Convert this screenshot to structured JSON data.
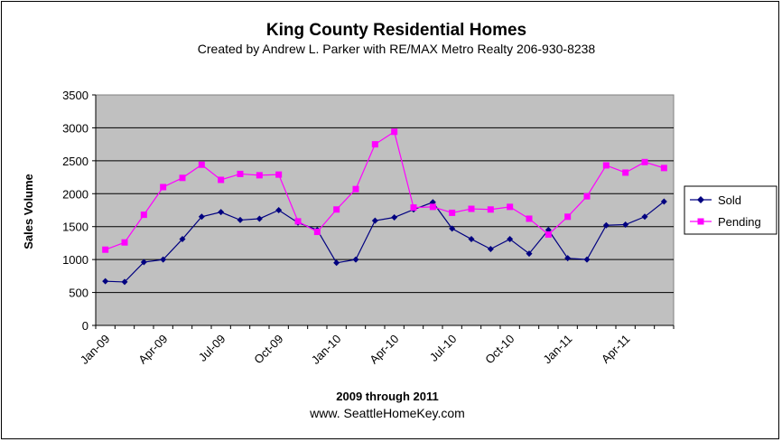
{
  "chart_data": {
    "type": "line",
    "title": "King County Residential Homes",
    "subtitle": "Created by Andrew L. Parker with RE/MAX Metro Realty 206-930-8238",
    "xlabel": "2009 through 2011",
    "ylabel": "Sales Volume",
    "footer": "www. SeattleHomeKey.com",
    "ylim": [
      0,
      3500
    ],
    "yticks": [
      0,
      500,
      1000,
      1500,
      2000,
      2500,
      3000,
      3500
    ],
    "xtick_labels": [
      "Jan-09",
      "Apr-09",
      "Jul-09",
      "Oct-09",
      "Jan-10",
      "Apr-10",
      "Jul-10",
      "Oct-10",
      "Jan-11",
      "Apr-11"
    ],
    "x": [
      "Jan-09",
      "Feb-09",
      "Mar-09",
      "Apr-09",
      "May-09",
      "Jun-09",
      "Jul-09",
      "Aug-09",
      "Sep-09",
      "Oct-09",
      "Nov-09",
      "Dec-09",
      "Jan-10",
      "Feb-10",
      "Mar-10",
      "Apr-10",
      "May-10",
      "Jun-10",
      "Jul-10",
      "Aug-10",
      "Sep-10",
      "Oct-10",
      "Nov-10",
      "Dec-10",
      "Jan-11",
      "Feb-11",
      "Mar-11",
      "Apr-11",
      "May-11",
      "Jun-11"
    ],
    "series": [
      {
        "name": "Sold",
        "color": "#000080",
        "marker": "diamond",
        "values": [
          670,
          660,
          960,
          1000,
          1310,
          1650,
          1720,
          1600,
          1620,
          1750,
          1560,
          1450,
          950,
          1000,
          1590,
          1640,
          1760,
          1870,
          1470,
          1310,
          1160,
          1310,
          1090,
          1450,
          1020,
          1000,
          1520,
          1530,
          1650,
          1880
        ]
      },
      {
        "name": "Pending",
        "color": "#FF00FF",
        "marker": "square",
        "values": [
          1150,
          1260,
          1680,
          2100,
          2240,
          2440,
          2210,
          2300,
          2280,
          2290,
          1580,
          1420,
          1760,
          2070,
          2750,
          2940,
          1790,
          1800,
          1710,
          1770,
          1760,
          1800,
          1620,
          1380,
          1650,
          1960,
          2430,
          2320,
          2480,
          2390
        ]
      }
    ],
    "plot_background": "#C0C0C0",
    "grid": true,
    "legend_position": "right"
  }
}
